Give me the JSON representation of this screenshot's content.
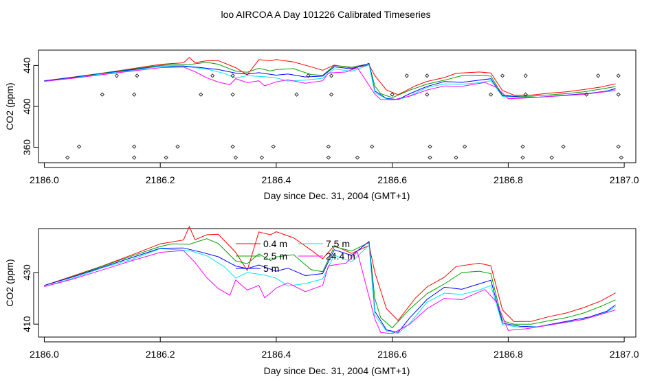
{
  "figure": {
    "title": "loo AIRCOA A  Day 101226  Calibrated Timeseries"
  },
  "colors": {
    "0.4 m": "#ff0000",
    "2.5 m": "#00a000",
    "5 m": "#0000ff",
    "7.5 m": "#00e5ee",
    "24.4 m": "#ff00ff",
    "axis": "#000000"
  },
  "chart_data": [
    {
      "type": "line",
      "xlabel": "Day since Dec. 31, 2004 (GMT+1)",
      "ylabel": "CO2 (ppm)",
      "xlim": [
        2185.99,
        2187.02
      ],
      "ylim": [
        345,
        455
      ],
      "xticks": [
        2186.0,
        2186.2,
        2186.4,
        2186.6,
        2186.8,
        2187.0
      ],
      "xticklabels": [
        "2186.0",
        "2186.2",
        "2186.4",
        "2186.6",
        "2186.8",
        "2187.0"
      ],
      "yticks": [
        360,
        400,
        440
      ],
      "yticklabels": [
        "360",
        "400",
        "440"
      ],
      "legend": "none",
      "series": [
        {
          "color_key": "0.4 m",
          "x": [
            2186.0,
            2186.05,
            2186.1,
            2186.15,
            2186.2,
            2186.24,
            2186.25,
            2186.26,
            2186.28,
            2186.3,
            2186.33,
            2186.35,
            2186.37,
            2186.39,
            2186.4,
            2186.43,
            2186.46,
            2186.48,
            2186.5,
            2186.53,
            2186.56,
            2186.57,
            2186.59,
            2186.61,
            2186.64,
            2186.66,
            2186.69,
            2186.71,
            2186.75,
            2186.77,
            2186.79,
            2186.81,
            2186.84,
            2186.87,
            2186.9,
            2186.93,
            2186.96,
            2186.985
          ],
          "values": [
            425.0,
            428.7,
            432.5,
            436.7,
            441.1,
            442.6,
            447.8,
            442.7,
            444.6,
            444.8,
            437.8,
            430.8,
            445.7,
            444.6,
            445.8,
            443.4,
            438.7,
            435.3,
            440.4,
            437.4,
            440.5,
            430.1,
            416.0,
            411.4,
            420.1,
            424.4,
            428.2,
            432.3,
            433.6,
            432.6,
            415.5,
            411.0,
            411.1,
            412.9,
            414.3,
            416.4,
            419.0,
            422.1
          ]
        },
        {
          "color_key": "2.5 m",
          "x": [
            2186.0,
            2186.05,
            2186.1,
            2186.15,
            2186.2,
            2186.22,
            2186.25,
            2186.28,
            2186.3,
            2186.33,
            2186.35,
            2186.37,
            2186.39,
            2186.4,
            2186.43,
            2186.46,
            2186.48,
            2186.5,
            2186.53,
            2186.56,
            2186.57,
            2186.58,
            2186.6,
            2186.63,
            2186.66,
            2186.69,
            2186.72,
            2186.75,
            2186.77,
            2186.79,
            2186.81,
            2186.84,
            2186.87,
            2186.9,
            2186.93,
            2186.96,
            2186.985
          ],
          "values": [
            425.0,
            428.5,
            432.4,
            436.3,
            440.1,
            441.1,
            440.9,
            443.1,
            441.2,
            434.5,
            433.4,
            437.2,
            434.6,
            436.0,
            436.9,
            431.1,
            430.3,
            440.0,
            438.3,
            441.6,
            420.0,
            412.5,
            408.6,
            415.8,
            421.8,
            425.6,
            430.0,
            430.5,
            429.6,
            411.3,
            410.0,
            410.0,
            411.3,
            412.5,
            414.3,
            416.9,
            419.4
          ]
        },
        {
          "color_key": "5 m",
          "x": [
            2186.0,
            2186.05,
            2186.1,
            2186.15,
            2186.2,
            2186.24,
            2186.27,
            2186.3,
            2186.33,
            2186.35,
            2186.37,
            2186.4,
            2186.42,
            2186.45,
            2186.48,
            2186.5,
            2186.53,
            2186.56,
            2186.57,
            2186.59,
            2186.61,
            2186.63,
            2186.66,
            2186.69,
            2186.72,
            2186.75,
            2186.77,
            2186.79,
            2186.82,
            2186.85,
            2186.88,
            2186.91,
            2186.94,
            2186.97,
            2186.985
          ],
          "values": [
            425.0,
            428.3,
            432.0,
            435.7,
            439.4,
            439.5,
            437.9,
            436.1,
            432.5,
            431.5,
            432.9,
            430.5,
            431.7,
            428.8,
            429.6,
            438.8,
            436.6,
            442.0,
            415.0,
            407.8,
            406.8,
            412.4,
            419.6,
            424.3,
            423.5,
            425.6,
            427.0,
            410.4,
            409.2,
            409.0,
            410.2,
            411.5,
            412.8,
            415.0,
            417.5
          ]
        },
        {
          "color_key": "7.5 m",
          "x": [
            2186.0,
            2186.05,
            2186.1,
            2186.15,
            2186.2,
            2186.25,
            2186.28,
            2186.31,
            2186.33,
            2186.35,
            2186.38,
            2186.4,
            2186.42,
            2186.45,
            2186.48,
            2186.5,
            2186.53,
            2186.56,
            2186.57,
            2186.59,
            2186.61,
            2186.63,
            2186.66,
            2186.69,
            2186.72,
            2186.75,
            2186.77,
            2186.79,
            2186.82,
            2186.85,
            2186.88,
            2186.91,
            2186.94,
            2186.97,
            2186.985
          ],
          "values": [
            424.5,
            427.8,
            431.8,
            435.0,
            439.2,
            438.5,
            436.5,
            432.3,
            427.8,
            430.0,
            429.0,
            427.8,
            424.8,
            425.7,
            427.5,
            436.7,
            434.2,
            440.6,
            413.5,
            407.4,
            406.4,
            410.3,
            418.5,
            422.0,
            421.5,
            423.2,
            425.0,
            409.8,
            408.8,
            409.0,
            410.0,
            411.0,
            412.5,
            414.7,
            416.8
          ]
        },
        {
          "color_key": "24.4 m",
          "x": [
            2186.0,
            2186.05,
            2186.1,
            2186.15,
            2186.2,
            2186.24,
            2186.26,
            2186.28,
            2186.3,
            2186.32,
            2186.33,
            2186.35,
            2186.37,
            2186.38,
            2186.39,
            2186.4,
            2186.42,
            2186.45,
            2186.48,
            2186.49,
            2186.52,
            2186.54,
            2186.57,
            2186.58,
            2186.6,
            2186.63,
            2186.66,
            2186.69,
            2186.72,
            2186.75,
            2186.76,
            2186.78,
            2186.8,
            2186.83,
            2186.87,
            2186.9,
            2186.93,
            2186.96,
            2186.985
          ],
          "values": [
            424.5,
            427.5,
            431.0,
            434.5,
            437.8,
            438.5,
            433.9,
            428.0,
            423.8,
            421.2,
            427.1,
            423.2,
            425.0,
            420.2,
            422.0,
            424.0,
            426.0,
            422.6,
            425.0,
            432.6,
            433.6,
            437.9,
            412.0,
            406.8,
            406.3,
            410.0,
            416.0,
            420.0,
            419.5,
            422.5,
            423.4,
            418.5,
            407.6,
            408.2,
            409.6,
            410.8,
            411.8,
            413.8,
            415.5
          ]
        }
      ],
      "markers": [
        {
          "x": 2186.04,
          "y": 350.0
        },
        {
          "x": 2186.06,
          "y": 360.7
        },
        {
          "x": 2186.1,
          "y": 411.6
        },
        {
          "x": 2186.125,
          "y": 430.0
        },
        {
          "x": 2186.155,
          "y": 350.0
        },
        {
          "x": 2186.155,
          "y": 411.6
        },
        {
          "x": 2186.155,
          "y": 360.7
        },
        {
          "x": 2186.16,
          "y": 430.0
        },
        {
          "x": 2186.21,
          "y": 350.0
        },
        {
          "x": 2186.23,
          "y": 360.7
        },
        {
          "x": 2186.27,
          "y": 411.6
        },
        {
          "x": 2186.29,
          "y": 430.0
        },
        {
          "x": 2186.325,
          "y": 360.7
        },
        {
          "x": 2186.325,
          "y": 411.6
        },
        {
          "x": 2186.325,
          "y": 430.0
        },
        {
          "x": 2186.33,
          "y": 350.0
        },
        {
          "x": 2186.375,
          "y": 350.0
        },
        {
          "x": 2186.395,
          "y": 360.7
        },
        {
          "x": 2186.435,
          "y": 411.6
        },
        {
          "x": 2186.455,
          "y": 430.0
        },
        {
          "x": 2186.49,
          "y": 350.0
        },
        {
          "x": 2186.49,
          "y": 360.7
        },
        {
          "x": 2186.495,
          "y": 411.6
        },
        {
          "x": 2186.495,
          "y": 430.0
        },
        {
          "x": 2186.54,
          "y": 350.0
        },
        {
          "x": 2186.565,
          "y": 360.7
        },
        {
          "x": 2186.6,
          "y": 411.6
        },
        {
          "x": 2186.625,
          "y": 430.0
        },
        {
          "x": 2186.66,
          "y": 430.0
        },
        {
          "x": 2186.66,
          "y": 411.6
        },
        {
          "x": 2186.665,
          "y": 360.7
        },
        {
          "x": 2186.665,
          "y": 350.0
        },
        {
          "x": 2186.71,
          "y": 350.0
        },
        {
          "x": 2186.725,
          "y": 360.7
        },
        {
          "x": 2186.77,
          "y": 411.6
        },
        {
          "x": 2186.79,
          "y": 430.0
        },
        {
          "x": 2186.825,
          "y": 350.0
        },
        {
          "x": 2186.825,
          "y": 360.7
        },
        {
          "x": 2186.83,
          "y": 411.6
        },
        {
          "x": 2186.83,
          "y": 430.0
        },
        {
          "x": 2186.875,
          "y": 350.0
        },
        {
          "x": 2186.895,
          "y": 360.7
        },
        {
          "x": 2186.935,
          "y": 411.6
        },
        {
          "x": 2186.955,
          "y": 430.0
        },
        {
          "x": 2186.99,
          "y": 430.0
        },
        {
          "x": 2186.99,
          "y": 411.6
        },
        {
          "x": 2186.99,
          "y": 360.7
        },
        {
          "x": 2186.995,
          "y": 350.0
        }
      ]
    },
    {
      "type": "line",
      "xlabel": "Day since Dec. 31, 2004 (GMT+1)",
      "ylabel": "CO2 (ppm)",
      "xlim": [
        2185.99,
        2187.02
      ],
      "ylim": [
        405,
        447
      ],
      "xticks": [
        2186.0,
        2186.2,
        2186.4,
        2186.6,
        2186.8,
        2187.0
      ],
      "xticklabels": [
        "2186.0",
        "2186.2",
        "2186.4",
        "2186.6",
        "2186.8",
        "2187.0"
      ],
      "yticks": [
        410,
        430
      ],
      "yticklabels": [
        "410",
        "430"
      ],
      "legend": "top-center",
      "series": [
        {
          "name": "0.4 m",
          "color_key": "0.4 m",
          "ref": 0
        },
        {
          "name": "2.5 m",
          "color_key": "2.5 m",
          "ref": 1
        },
        {
          "name": "5 m",
          "color_key": "5 m",
          "ref": 2
        },
        {
          "name": "7.5 m",
          "color_key": "7.5 m",
          "ref": 3
        },
        {
          "name": "24.4 m",
          "color_key": "24.4 m",
          "ref": 4
        }
      ]
    }
  ]
}
